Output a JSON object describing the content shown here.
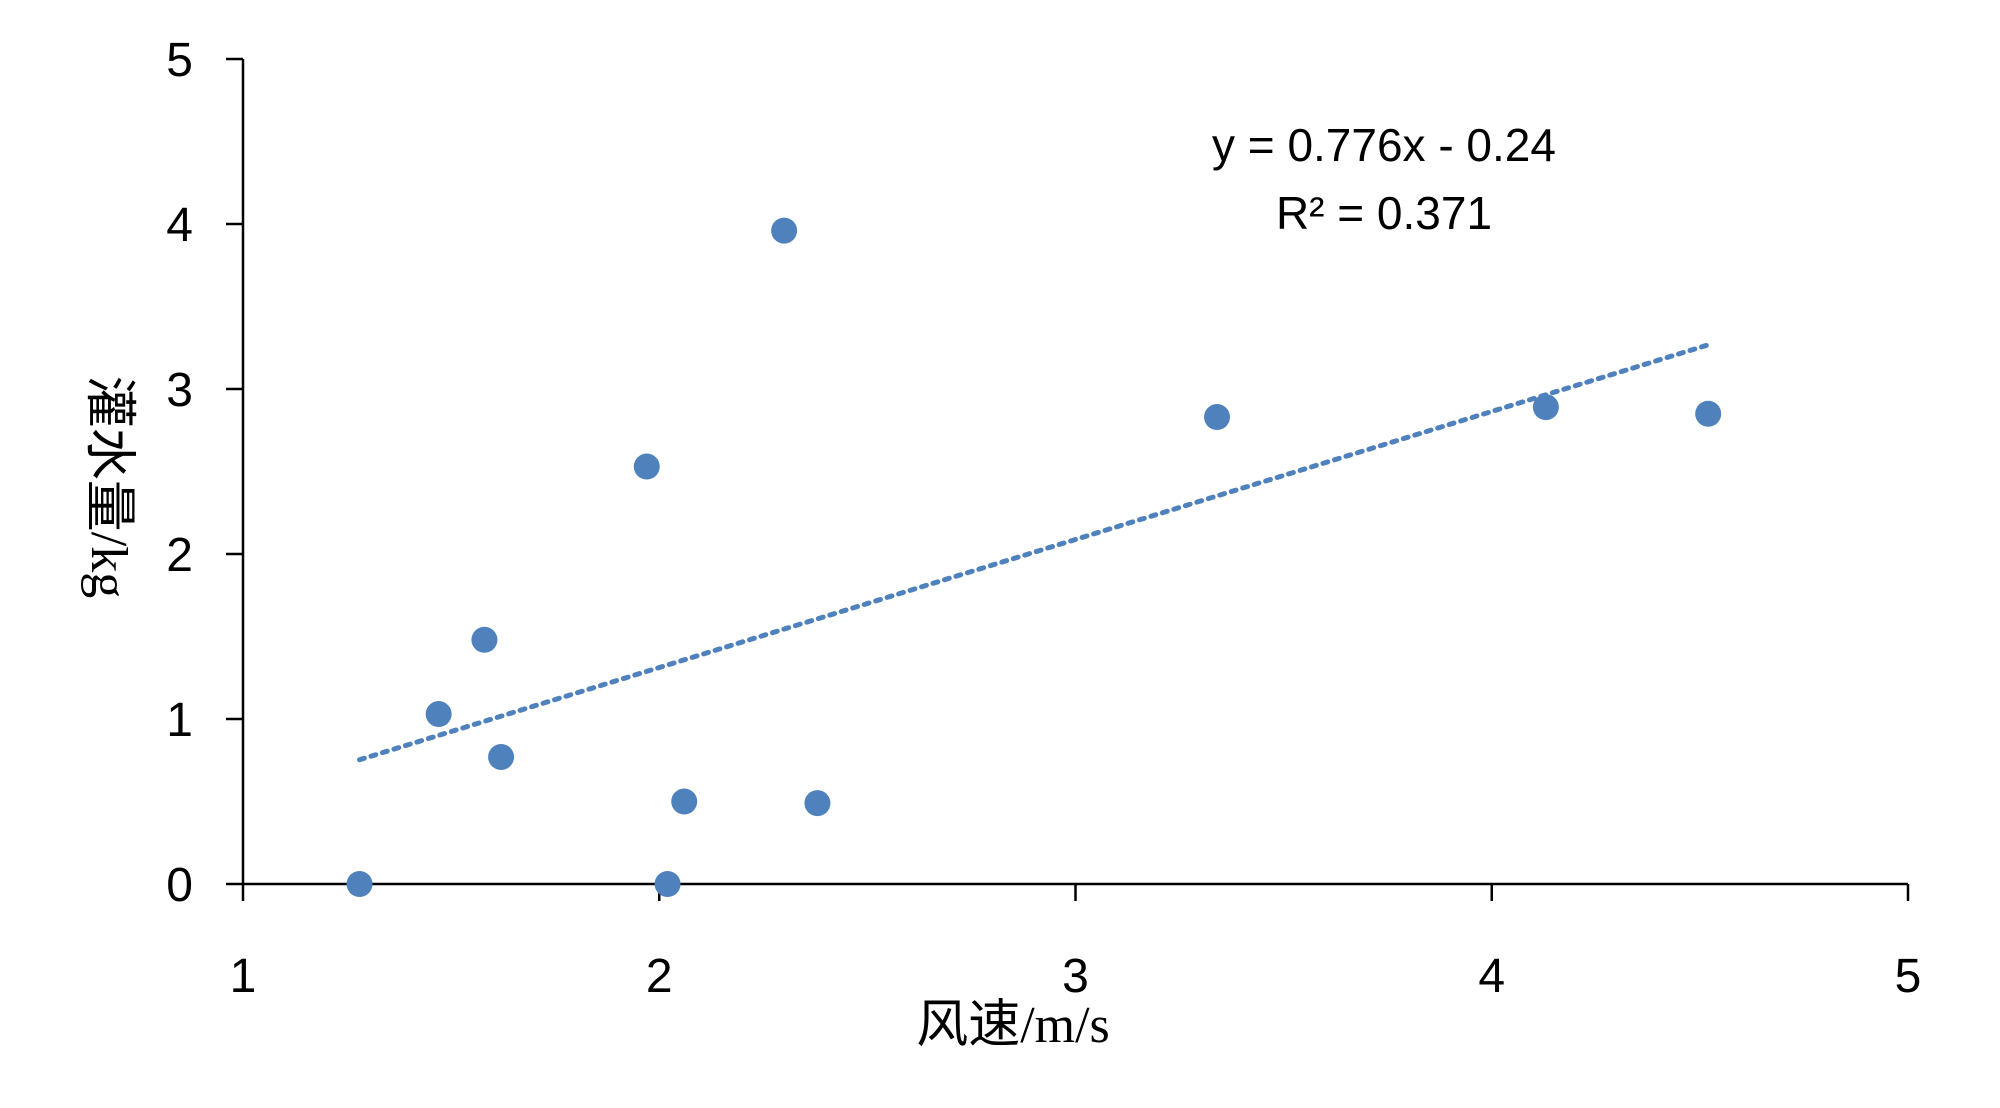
{
  "chart_data": {
    "type": "scatter",
    "title": "",
    "xlabel": "风速/m/s",
    "ylabel": "灌水量/kg",
    "xlim": [
      1,
      5
    ],
    "ylim": [
      0,
      5
    ],
    "x_ticks": [
      "1",
      "2",
      "3",
      "4",
      "5"
    ],
    "y_ticks": [
      "0",
      "1",
      "2",
      "3",
      "4",
      "5"
    ],
    "grid": false,
    "legend": "none",
    "series": [
      {
        "points": [
          {
            "x": 1.28,
            "y": 0.0
          },
          {
            "x": 1.47,
            "y": 1.03
          },
          {
            "x": 1.58,
            "y": 1.48
          },
          {
            "x": 1.62,
            "y": 0.77
          },
          {
            "x": 1.97,
            "y": 2.53
          },
          {
            "x": 2.02,
            "y": 0.0
          },
          {
            "x": 2.06,
            "y": 0.5
          },
          {
            "x": 2.3,
            "y": 3.96
          },
          {
            "x": 2.38,
            "y": 0.49
          },
          {
            "x": 3.34,
            "y": 2.83
          },
          {
            "x": 4.13,
            "y": 2.89
          },
          {
            "x": 4.52,
            "y": 2.85
          }
        ]
      }
    ],
    "trendline": {
      "type": "linear",
      "slope": 0.776,
      "intercept": -0.24,
      "x_range": [
        1.28,
        4.52
      ],
      "equation": "y = 0.776x - 0.24",
      "r_squared": "R² = 0.371"
    },
    "colors": {
      "point": "#4f81bd",
      "trendline": "#4f81bd",
      "axis": "#000000"
    }
  }
}
